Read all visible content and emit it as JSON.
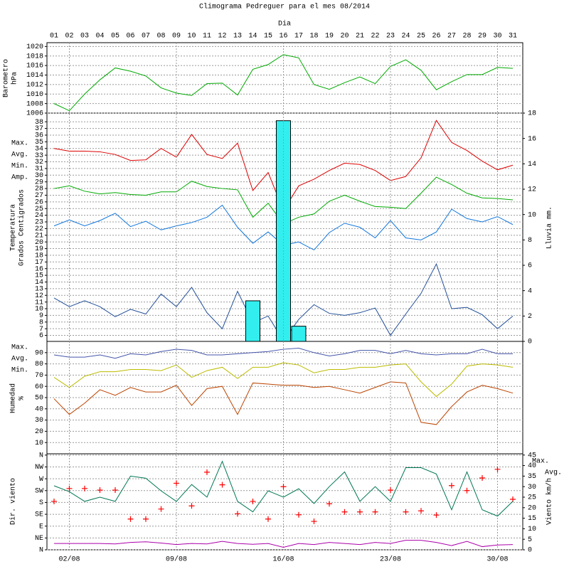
{
  "chart_data": [
    {
      "type": "line",
      "title": "Climograma Pedreguer para el mes 08/2014",
      "x_label": "Dia",
      "categories": [
        "01",
        "02",
        "03",
        "04",
        "05",
        "06",
        "07",
        "08",
        "09",
        "10",
        "11",
        "12",
        "13",
        "14",
        "15",
        "16",
        "17",
        "18",
        "19",
        "20",
        "21",
        "22",
        "23",
        "24",
        "25",
        "26",
        "27",
        "28",
        "29",
        "30",
        "31"
      ],
      "y_label": [
        "Barometro",
        "hPa"
      ],
      "ylim": [
        1006,
        1020.8
      ],
      "yticks": [
        1006,
        1008,
        1010,
        1012,
        1014,
        1016,
        1018,
        1020
      ],
      "grid": true,
      "series": [
        {
          "color": "#00aa00",
          "values": [
            1008,
            1006.5,
            1010,
            1013,
            1015.5,
            1014.8,
            1013.8,
            1011.3,
            1010.2,
            1009.7,
            1012.2,
            1012.3,
            1009.8,
            1015.2,
            1016.2,
            1018.3,
            1017.6,
            1012,
            1011,
            1012.4,
            1013.6,
            1012.2,
            1015.8,
            1017.2,
            1015,
            1010.9,
            1012.6,
            1014.1,
            1014.1,
            1015.6,
            1015.4
          ]
        }
      ]
    },
    {
      "type": "line",
      "y_label": [
        "Temperatura",
        "Grados Centigrados"
      ],
      "y2_label": "Lluvia mm.",
      "ylim": [
        5.1,
        39.3
      ],
      "yticks": [
        6,
        7,
        8,
        9,
        10,
        11,
        12,
        13,
        14,
        15,
        16,
        17,
        18,
        19,
        20,
        21,
        22,
        23,
        24,
        25,
        26,
        27,
        28,
        29,
        30,
        31,
        32,
        33,
        34,
        35,
        36,
        37,
        38
      ],
      "y2lim": [
        0,
        18
      ],
      "y2ticks": [
        0,
        2,
        4,
        6,
        8,
        10,
        12,
        14,
        16,
        18
      ],
      "grid": true,
      "series": [
        {
          "name": "Max.",
          "color": "#dd0000",
          "values": [
            34,
            33.6,
            33.6,
            33.5,
            33.1,
            32.2,
            32.3,
            34,
            32.7,
            36.1,
            33.1,
            32.5,
            34.8,
            27.7,
            30.4,
            24.7,
            28.4,
            29.4,
            30.7,
            31.8,
            31.6,
            30.7,
            29.2,
            29.8,
            32.6,
            38.2,
            34.9,
            33.7,
            32.1,
            30.8,
            31.5
          ]
        },
        {
          "name": "Avg.",
          "color": "#00aa00",
          "values": [
            28,
            28.4,
            27.6,
            27.2,
            27.4,
            27.1,
            27,
            27.5,
            27.5,
            29.1,
            28.3,
            28,
            27.8,
            23.7,
            25.8,
            22.7,
            23.7,
            24.2,
            26.1,
            27,
            26.1,
            25.3,
            25.2,
            25,
            27.3,
            29.7,
            28.6,
            27.3,
            26.6,
            26.5,
            26.3
          ]
        },
        {
          "name": "Min.",
          "color": "#1177dd",
          "values": [
            22.4,
            23.3,
            22.4,
            23.2,
            24.3,
            22.3,
            23.1,
            21.8,
            22.4,
            22.9,
            23.7,
            25.5,
            22.2,
            19.8,
            21.5,
            19.5,
            20,
            18.8,
            21.4,
            22.8,
            22.2,
            20.6,
            23.2,
            20.6,
            20.3,
            21.5,
            24.9,
            23.5,
            23,
            23.8,
            22.6
          ]
        },
        {
          "name": "Amp.",
          "color": "#224f99",
          "values": [
            11.6,
            10.3,
            11.2,
            10.3,
            8.8,
            9.9,
            9.2,
            12.2,
            10.3,
            13.2,
            9.4,
            7,
            12.6,
            7.9,
            8.9,
            5.2,
            8.4,
            10.6,
            9.3,
            9,
            9.4,
            10.1,
            6,
            9.2,
            12.3,
            16.7,
            10,
            10.2,
            9.1,
            7,
            8.9
          ]
        },
        {
          "type": "bar",
          "axis": "y2",
          "color": "#33eeee",
          "values": [
            0,
            0,
            0,
            0,
            0,
            0,
            0,
            0,
            0,
            0,
            0,
            0,
            0,
            3.2,
            0,
            17.4,
            1.2,
            0,
            0,
            0,
            0,
            0,
            0,
            0,
            0,
            0,
            0,
            0,
            0,
            0,
            0
          ]
        }
      ]
    },
    {
      "type": "line",
      "y_label": [
        "Humedad",
        "%"
      ],
      "ylim": [
        0,
        100
      ],
      "yticks": [
        10,
        20,
        30,
        40,
        50,
        60,
        70,
        80,
        90
      ],
      "grid": true,
      "series": [
        {
          "name": "Max.",
          "color": "#4455aa",
          "values": [
            88,
            86,
            86,
            88,
            85,
            89,
            88,
            91,
            93,
            92,
            88,
            88,
            89,
            90,
            91,
            93,
            94,
            90,
            87,
            89,
            92,
            92,
            89,
            92,
            89,
            88,
            89,
            89,
            93,
            89,
            89
          ]
        },
        {
          "name": "Avg.",
          "color": "#bbbb00",
          "values": [
            68,
            59,
            69,
            73,
            73,
            75,
            75,
            74,
            79,
            68,
            74,
            77,
            67,
            77,
            77,
            81,
            79,
            72,
            75,
            75,
            77,
            77,
            79,
            80,
            64,
            51,
            62,
            78,
            80,
            79,
            77
          ]
        },
        {
          "name": "Min.",
          "color": "#bb4400",
          "values": [
            49,
            35,
            45,
            57,
            52,
            59,
            55,
            55,
            61,
            43,
            58,
            60,
            35,
            63,
            62,
            61,
            61,
            59,
            60,
            57,
            54,
            59,
            64,
            63,
            28,
            26,
            42,
            55,
            61,
            58,
            54
          ]
        }
      ]
    },
    {
      "type": "line",
      "y_label": [
        "Dir. viento"
      ],
      "y2_label": "Viento km/h",
      "ylim": [
        0,
        365
      ],
      "yticks": [
        {
          "value": 0,
          "label": "N"
        },
        {
          "value": 45,
          "label": "NE"
        },
        {
          "value": 90,
          "label": "E"
        },
        {
          "value": 135,
          "label": "SE"
        },
        {
          "value": 180,
          "label": "S"
        },
        {
          "value": 225,
          "label": "SW"
        },
        {
          "value": 270,
          "label": "W"
        },
        {
          "value": 315,
          "label": "NW"
        },
        {
          "value": 360,
          "label": "N"
        }
      ],
      "y2lim": [
        0,
        45.6
      ],
      "y2ticks": [
        0,
        5,
        10,
        15,
        20,
        25,
        30,
        35,
        40,
        45
      ],
      "grid": true,
      "xticks": [
        {
          "value": 2,
          "label": "02/08"
        },
        {
          "value": 9,
          "label": "09/08"
        },
        {
          "value": 16,
          "label": "16/08"
        },
        {
          "value": 23,
          "label": "23/08"
        },
        {
          "value": 30,
          "label": "30/08"
        }
      ],
      "series": [
        {
          "type": "scatter",
          "color": "#ff0000",
          "values": [
            184,
            233,
            233,
            227,
            227,
            117,
            117,
            155,
            253,
            167,
            295,
            247,
            137,
            184,
            117,
            240,
            133,
            108,
            175,
            144,
            144,
            144,
            227,
            144,
            148,
            132,
            244,
            225,
            273,
            306,
            192
          ]
        },
        {
          "name": "Max.",
          "axis": "y2",
          "color": "#007755",
          "values": [
            30.4,
            27.6,
            23,
            25,
            23,
            35,
            34,
            28,
            23,
            31,
            25,
            42,
            23,
            18,
            28,
            25,
            29,
            22,
            30,
            37,
            23,
            30,
            23,
            39,
            39,
            36,
            19,
            37,
            19,
            16,
            23
          ]
        },
        {
          "name": "Avg.",
          "axis": "y2",
          "color": "#aa00aa",
          "values": [
            3,
            3,
            3,
            3,
            2.8,
            3.5,
            3.8,
            3.2,
            2.5,
            3,
            2.8,
            4,
            3,
            2.6,
            3,
            1.2,
            3,
            2.5,
            3.5,
            3,
            2.5,
            3.5,
            3,
            4.5,
            4.5,
            3.5,
            2,
            4,
            1.5,
            2.3,
            2.5
          ]
        }
      ]
    }
  ]
}
